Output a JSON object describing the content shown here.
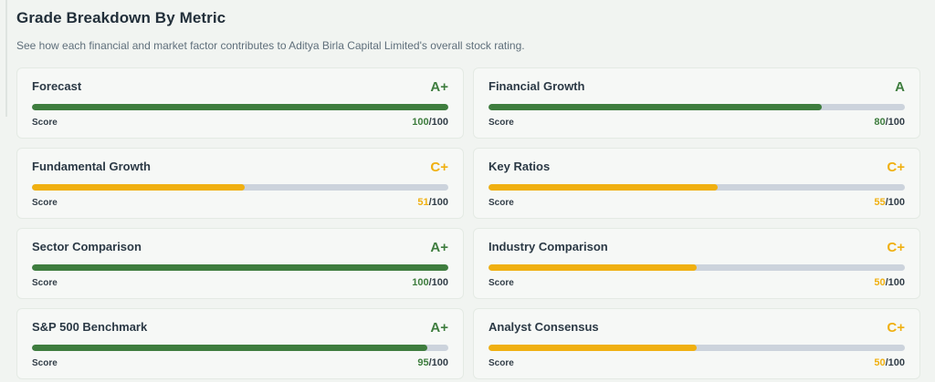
{
  "header": {
    "title": "Grade Breakdown By Metric",
    "subtitle": "See how each financial and market factor contributes to Aditya Birla Capital Limited's overall stock rating."
  },
  "labels": {
    "score": "Score"
  },
  "colors": {
    "green": "#3e7d3e",
    "amber": "#f0b011",
    "track": "#ccd3dc"
  },
  "cards": [
    {
      "title": "Forecast",
      "grade": "A+",
      "score": 100,
      "suffix": "/100",
      "tone": "green"
    },
    {
      "title": "Financial Growth",
      "grade": "A",
      "score": 80,
      "suffix": "/100",
      "tone": "green"
    },
    {
      "title": "Fundamental Growth",
      "grade": "C+",
      "score": 51,
      "suffix": "/100",
      "tone": "amber"
    },
    {
      "title": "Key Ratios",
      "grade": "C+",
      "score": 55,
      "suffix": "/100",
      "tone": "amber"
    },
    {
      "title": "Sector Comparison",
      "grade": "A+",
      "score": 100,
      "suffix": "/100",
      "tone": "green"
    },
    {
      "title": "Industry Comparison",
      "grade": "C+",
      "score": 50,
      "suffix": "/100",
      "tone": "amber"
    },
    {
      "title": "S&P 500 Benchmark",
      "grade": "A+",
      "score": 95,
      "suffix": "/100",
      "tone": "green"
    },
    {
      "title": "Analyst Consensus",
      "grade": "C+",
      "score": 50,
      "suffix": "/100",
      "tone": "amber"
    }
  ]
}
